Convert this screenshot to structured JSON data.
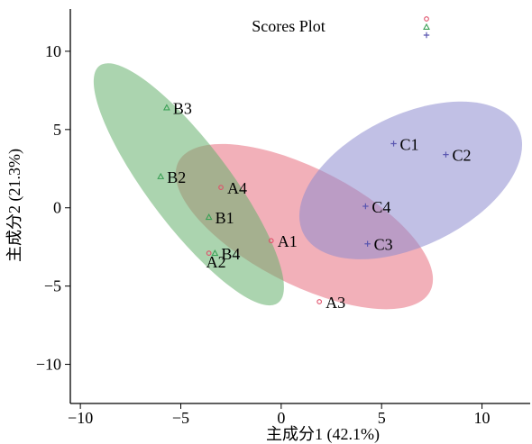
{
  "chart_data": {
    "type": "scatter",
    "title": "Scores Plot",
    "xlabel": "主成分1 (42.1%)",
    "ylabel": "主成分2 (21.3%)",
    "xlim": [
      -10.5,
      12.4
    ],
    "ylim": [
      -12.5,
      12.7
    ],
    "xticks": [
      -10,
      -5,
      0,
      5,
      10
    ],
    "yticks": [
      -10,
      -5,
      0,
      5,
      10
    ],
    "xtick_labels": [
      "−10",
      "−5",
      "0",
      "5",
      "10"
    ],
    "ytick_labels": [
      "−10",
      "−5",
      "0",
      "5",
      "10"
    ],
    "grid": false,
    "legend_position": "top-right",
    "series": [
      {
        "marker": "circle",
        "color": "#e0506a",
        "fill": "#e8707f",
        "points": [
          {
            "label": "A1",
            "x": -0.5,
            "y": -2.1
          },
          {
            "label": "A2",
            "x": -3.6,
            "y": -2.9
          },
          {
            "label": "A3",
            "x": 1.9,
            "y": -6.0
          },
          {
            "label": "A4",
            "x": -3.0,
            "y": 1.3
          }
        ],
        "ellipse": {
          "cx": 1.15,
          "cy": -1.2,
          "rx": 7.55,
          "ry": 3.45,
          "angle_deg": -36.5
        }
      },
      {
        "marker": "triangle",
        "color": "#3aa055",
        "fill": "#66b06e",
        "points": [
          {
            "label": "B1",
            "x": -3.6,
            "y": -0.6
          },
          {
            "label": "B2",
            "x": -6.0,
            "y": 2.0
          },
          {
            "label": "B3",
            "x": -5.7,
            "y": 6.4
          },
          {
            "label": "B4",
            "x": -3.3,
            "y": -2.9
          }
        ],
        "ellipse": {
          "cx": -4.6,
          "cy": 1.5,
          "rx": 8.8,
          "ry": 2.2,
          "angle_deg": -60.5
        }
      },
      {
        "marker": "plus",
        "color": "#5a56b0",
        "fill": "#8e8cd0",
        "points": [
          {
            "label": "C1",
            "x": 5.6,
            "y": 4.1
          },
          {
            "label": "C2",
            "x": 8.2,
            "y": 3.4
          },
          {
            "label": "C3",
            "x": 4.3,
            "y": -2.3
          },
          {
            "label": "C4",
            "x": 4.2,
            "y": 0.1
          }
        ],
        "ellipse": {
          "cx": 6.45,
          "cy": 1.75,
          "rx": 6.4,
          "ry": 3.9,
          "angle_deg": 39
        }
      }
    ]
  }
}
